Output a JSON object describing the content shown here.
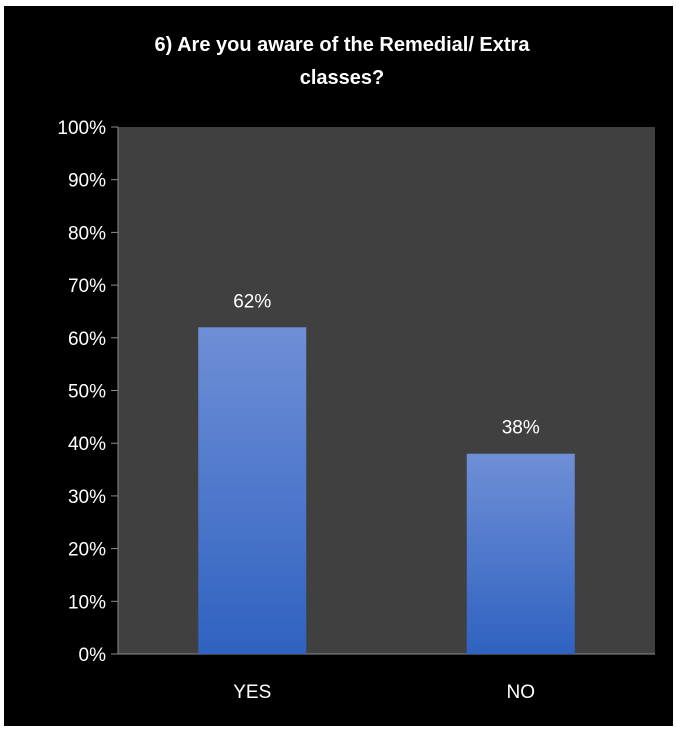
{
  "chart_data": {
    "type": "bar",
    "title": "6) Are you aware of the Remedial/ Extra classes?",
    "title_lines": [
      "6) Are you aware of the Remedial/ Extra",
      "classes?"
    ],
    "categories": [
      "YES",
      "NO"
    ],
    "values": [
      62,
      38
    ],
    "data_labels": [
      "62%",
      "38%"
    ],
    "y_ticks": [
      "0%",
      "10%",
      "20%",
      "30%",
      "40%",
      "50%",
      "60%",
      "70%",
      "80%",
      "90%",
      "100%"
    ],
    "ylim": [
      0,
      100
    ],
    "xlabel": "",
    "ylabel": "",
    "grid": false,
    "legend": "none",
    "colors": {
      "background": "#000000",
      "plot_area": "#404040",
      "bar_top": "#6f8fd6",
      "bar_bottom": "#2f62c0",
      "text": "#ffffff",
      "axis": "#8c8c8c"
    }
  }
}
